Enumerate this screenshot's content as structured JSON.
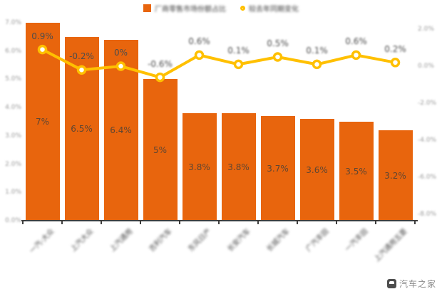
{
  "legend": {
    "items": [
      {
        "label": "厂商零售市场份额占比",
        "marker": "orange-square",
        "color": "#e8650d",
        "blurred": true
      },
      {
        "label": "较去年同期变化",
        "marker": "yellow-ring",
        "color": "#ffc000",
        "blurred": true
      }
    ]
  },
  "watermark": {
    "text": "汽车之家"
  },
  "colors": {
    "bar": "#e8650d",
    "line": "#ffc000",
    "marker_fill": "#ffffff",
    "axis": "#3d3d3d",
    "bar_label": "#5f4632",
    "line_label": "#4d4d4d",
    "tick_label": "#999999",
    "category_label": "#4a4a4a",
    "watermark": "#8a8a8a"
  },
  "chart_data": {
    "type": "bar+line",
    "legend_position": "top-center",
    "grid": false,
    "categories": [
      "一汽-大众",
      "上汽大众",
      "上汽通用",
      "吉利汽车",
      "东风日产",
      "长安汽车",
      "长城汽车",
      "广汽丰田",
      "一汽丰田",
      "上汽通用五菱"
    ],
    "categories_blurred": true,
    "series": [
      {
        "name": "厂商零售市场份额占比",
        "type": "bar",
        "axis": "left",
        "values": [
          7,
          6.5,
          6.4,
          5,
          3.8,
          3.8,
          3.7,
          3.6,
          3.5,
          3.2
        ],
        "labels": [
          "7%",
          "6.5%",
          "6.4%",
          "5%",
          "3.8%",
          "3.8%",
          "3.7%",
          "3.6%",
          "3.5%",
          "3.2%"
        ]
      },
      {
        "name": "较去年同期变化",
        "type": "line",
        "axis": "right",
        "values": [
          0.9,
          -0.2,
          0,
          -0.6,
          0.6,
          0.1,
          0.5,
          0.1,
          0.6,
          0.2
        ],
        "labels": [
          "0.9%",
          "-0.2%",
          "0%",
          "-0.6%",
          "0.6%",
          "0.1%",
          "0.5%",
          "0.1%",
          "0.6%",
          "0.2%"
        ],
        "label_legible": [
          true,
          true,
          true,
          false,
          false,
          false,
          false,
          false,
          false,
          false
        ]
      }
    ],
    "left_axis": {
      "ticks": [
        "7.0%",
        "6.0%",
        "5.0%",
        "4.0%",
        "3.0%",
        "2.0%",
        "1.0%",
        "0.0%"
      ],
      "min": 0,
      "max": 7,
      "blurred": true
    },
    "right_axis": {
      "ticks": [
        "2.0%",
        "0.0%",
        "-2.0%",
        "-4.0%",
        "-6.0%",
        "-8.0%"
      ],
      "min": -8,
      "max": 2,
      "blurred": true
    }
  }
}
